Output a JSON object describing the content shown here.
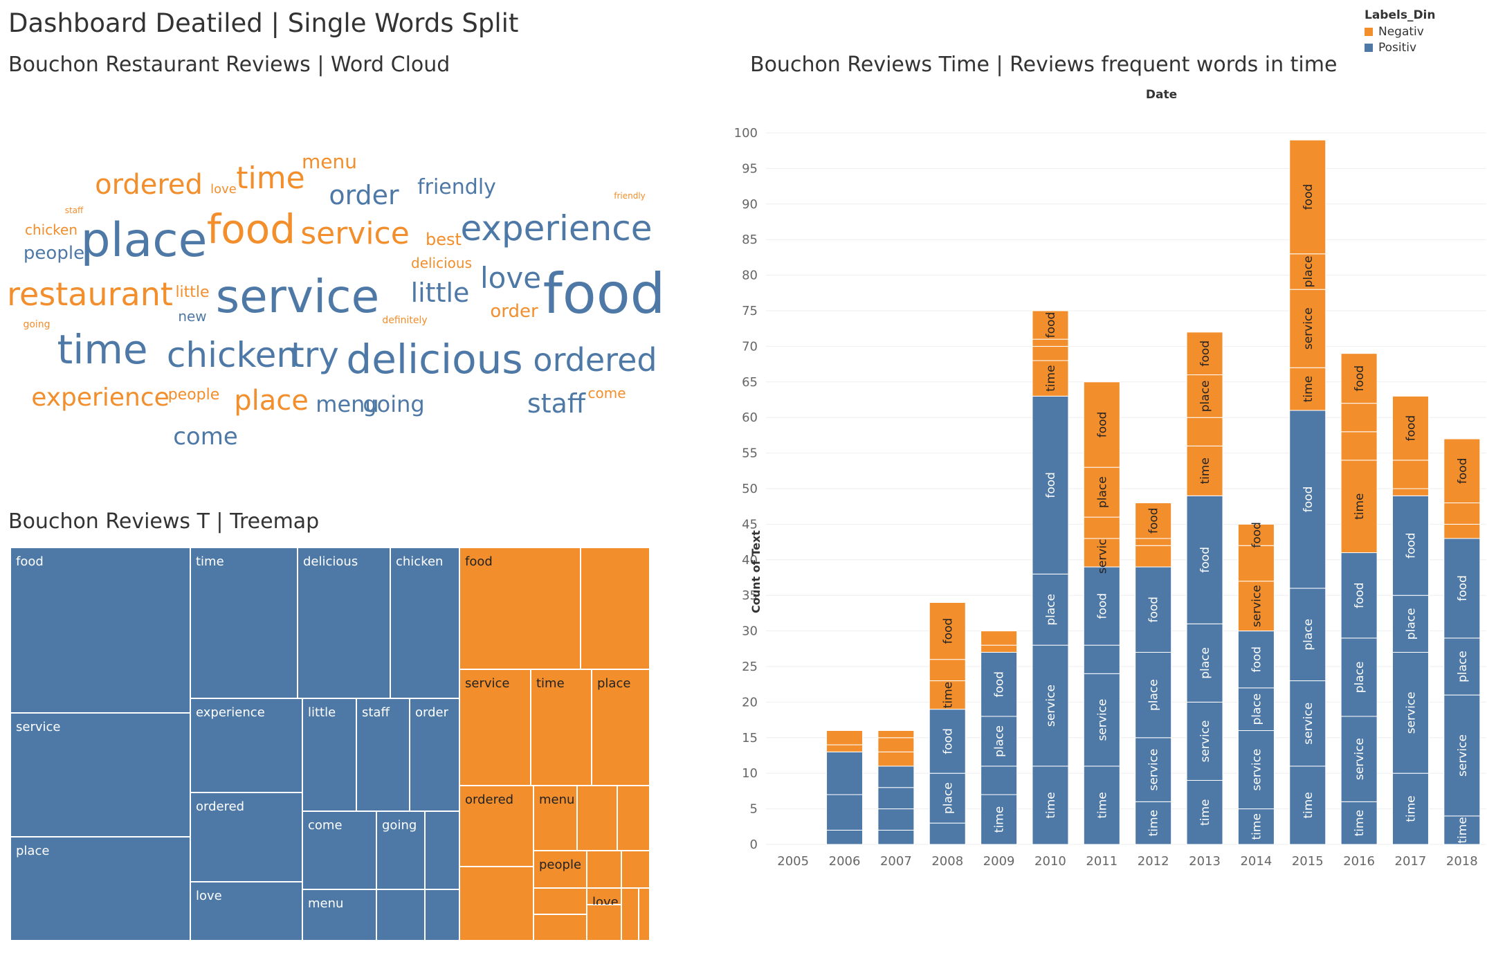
{
  "dashboard_title": "Dashboard Deatiled | Single Words Split",
  "wordcloud_title": "Bouchon Restaurant Reviews | Word Cloud",
  "treemap_title": "Bouchon Reviews T | Treemap",
  "barchart_title": "Bouchon Reviews Time |  Reviews frequent words in time",
  "colors": {
    "negativ": "#f28e2b",
    "positiv": "#4e79a7"
  },
  "legend": {
    "title": "Labels_Din",
    "items": [
      {
        "label": "Negativ",
        "color": "#f28e2b"
      },
      {
        "label": "Positiv",
        "color": "#4e79a7"
      }
    ]
  },
  "wordcloud_words": [
    {
      "text": "menu",
      "c": "negativ"
    },
    {
      "text": "ordered",
      "c": "negativ"
    },
    {
      "text": "love",
      "c": "negativ"
    },
    {
      "text": "time",
      "c": "negativ"
    },
    {
      "text": "order",
      "c": "positiv"
    },
    {
      "text": "friendly",
      "c": "positiv"
    },
    {
      "text": "friendly",
      "c": "negativ"
    },
    {
      "text": "staff",
      "c": "negativ"
    },
    {
      "text": "chicken",
      "c": "negativ"
    },
    {
      "text": "people",
      "c": "positiv"
    },
    {
      "text": "place",
      "c": "positiv"
    },
    {
      "text": "food",
      "c": "negativ"
    },
    {
      "text": "service",
      "c": "negativ"
    },
    {
      "text": "best",
      "c": "negativ"
    },
    {
      "text": "experience",
      "c": "positiv"
    },
    {
      "text": "delicious",
      "c": "negativ"
    },
    {
      "text": "restaurant",
      "c": "negativ"
    },
    {
      "text": "little",
      "c": "negativ"
    },
    {
      "text": "service",
      "c": "positiv"
    },
    {
      "text": "little",
      "c": "positiv"
    },
    {
      "text": "love",
      "c": "positiv"
    },
    {
      "text": "food",
      "c": "positiv"
    },
    {
      "text": "new",
      "c": "positiv"
    },
    {
      "text": "order",
      "c": "negativ"
    },
    {
      "text": "going",
      "c": "negativ"
    },
    {
      "text": "definitely",
      "c": "negativ"
    },
    {
      "text": "time",
      "c": "positiv"
    },
    {
      "text": "chicken",
      "c": "positiv"
    },
    {
      "text": "try",
      "c": "positiv"
    },
    {
      "text": "delicious",
      "c": "positiv"
    },
    {
      "text": "ordered",
      "c": "positiv"
    },
    {
      "text": "experience",
      "c": "negativ"
    },
    {
      "text": "people",
      "c": "negativ"
    },
    {
      "text": "place",
      "c": "negativ"
    },
    {
      "text": "menu",
      "c": "positiv"
    },
    {
      "text": "going",
      "c": "positiv"
    },
    {
      "text": "staff",
      "c": "positiv"
    },
    {
      "text": "come",
      "c": "negativ"
    },
    {
      "text": "come",
      "c": "positiv"
    }
  ],
  "treemap_cells": [
    {
      "label": "food",
      "c": "positiv"
    },
    {
      "label": "time",
      "c": "positiv"
    },
    {
      "label": "delicious",
      "c": "positiv"
    },
    {
      "label": "chicken",
      "c": "positiv"
    },
    {
      "label": "service",
      "c": "positiv"
    },
    {
      "label": "experience",
      "c": "positiv"
    },
    {
      "label": "little",
      "c": "positiv"
    },
    {
      "label": "staff",
      "c": "positiv"
    },
    {
      "label": "order",
      "c": "positiv"
    },
    {
      "label": "ordered",
      "c": "positiv"
    },
    {
      "label": "place",
      "c": "positiv"
    },
    {
      "label": "come",
      "c": "positiv"
    },
    {
      "label": "going",
      "c": "positiv"
    },
    {
      "label": "love",
      "c": "positiv"
    },
    {
      "label": "menu",
      "c": "positiv"
    },
    {
      "label": "",
      "c": "positiv"
    },
    {
      "label": "",
      "c": "positiv"
    },
    {
      "label": "",
      "c": "positiv"
    },
    {
      "label": "food",
      "c": "negativ"
    },
    {
      "label": "",
      "c": "negativ"
    },
    {
      "label": "service",
      "c": "negativ"
    },
    {
      "label": "time",
      "c": "negativ"
    },
    {
      "label": "place",
      "c": "negativ"
    },
    {
      "label": "ordered",
      "c": "negativ"
    },
    {
      "label": "menu",
      "c": "negativ"
    },
    {
      "label": "",
      "c": "negativ"
    },
    {
      "label": "",
      "c": "negativ"
    },
    {
      "label": "",
      "c": "negativ"
    },
    {
      "label": "people",
      "c": "negativ"
    },
    {
      "label": "",
      "c": "negativ"
    },
    {
      "label": "",
      "c": "negativ"
    },
    {
      "label": "",
      "c": "negativ"
    },
    {
      "label": "",
      "c": "negativ"
    },
    {
      "label": "love",
      "c": "negativ"
    },
    {
      "label": "",
      "c": "negativ"
    },
    {
      "label": "",
      "c": "negativ"
    },
    {
      "label": "",
      "c": "negativ"
    }
  ],
  "chart_data": {
    "type": "bar",
    "stacked": true,
    "title": "Bouchon Reviews Time |  Reviews frequent words in time",
    "xlabel": "Date",
    "ylabel": "Count of Text",
    "ylim": [
      0,
      100
    ],
    "yticks": [
      0,
      5,
      10,
      15,
      20,
      25,
      30,
      35,
      40,
      45,
      50,
      55,
      60,
      65,
      70,
      75,
      80,
      85,
      90,
      95,
      100
    ],
    "categories": [
      "2005",
      "2006",
      "2007",
      "2008",
      "2009",
      "2010",
      "2011",
      "2012",
      "2013",
      "2014",
      "2015",
      "2016",
      "2017",
      "2018"
    ],
    "series": [
      {
        "name": "Positiv",
        "values": [
          0,
          13,
          11,
          19,
          27,
          63,
          39,
          39,
          49,
          30,
          61,
          41,
          49,
          43
        ]
      },
      {
        "name": "Negativ",
        "values": [
          0,
          3,
          5,
          15,
          3,
          12,
          26,
          9,
          23,
          15,
          38,
          28,
          14,
          14
        ]
      }
    ],
    "segments": [
      {
        "year": "2005",
        "positiv": [],
        "negativ": []
      },
      {
        "year": "2006",
        "positiv": [
          {
            "w": "",
            "v": 2
          },
          {
            "w": "",
            "v": 5
          },
          {
            "w": "",
            "v": 6
          }
        ],
        "negativ": [
          {
            "w": "",
            "v": 1
          },
          {
            "w": "",
            "v": 2
          }
        ]
      },
      {
        "year": "2007",
        "positiv": [
          {
            "w": "",
            "v": 2
          },
          {
            "w": "",
            "v": 3
          },
          {
            "w": "",
            "v": 3
          },
          {
            "w": "",
            "v": 3
          }
        ],
        "negativ": [
          {
            "w": "",
            "v": 2
          },
          {
            "w": "",
            "v": 2
          },
          {
            "w": "",
            "v": 1
          }
        ]
      },
      {
        "year": "2008",
        "positiv": [
          {
            "w": "",
            "v": 3
          },
          {
            "w": "place",
            "v": 7
          },
          {
            "w": "food",
            "v": 9
          }
        ],
        "negativ": [
          {
            "w": "time",
            "v": 4
          },
          {
            "w": "",
            "v": 3
          },
          {
            "w": "food",
            "v": 8
          }
        ]
      },
      {
        "year": "2009",
        "positiv": [
          {
            "w": "time",
            "v": 7
          },
          {
            "w": "",
            "v": 4
          },
          {
            "w": "place",
            "v": 7
          },
          {
            "w": "food",
            "v": 9
          }
        ],
        "negativ": [
          {
            "w": "",
            "v": 1
          },
          {
            "w": "",
            "v": 2
          }
        ]
      },
      {
        "year": "2010",
        "positiv": [
          {
            "w": "time",
            "v": 11
          },
          {
            "w": "service",
            "v": 17
          },
          {
            "w": "place",
            "v": 10
          },
          {
            "w": "food",
            "v": 25
          }
        ],
        "negativ": [
          {
            "w": "time",
            "v": 5
          },
          {
            "w": "",
            "v": 2
          },
          {
            "w": "",
            "v": 1
          },
          {
            "w": "food",
            "v": 4
          }
        ]
      },
      {
        "year": "2011",
        "positiv": [
          {
            "w": "time",
            "v": 11
          },
          {
            "w": "service",
            "v": 13
          },
          {
            "w": "",
            "v": 4
          },
          {
            "w": "food",
            "v": 11
          }
        ],
        "negativ": [
          {
            "w": "service",
            "v": 4
          },
          {
            "w": "",
            "v": 3
          },
          {
            "w": "place",
            "v": 7
          },
          {
            "w": "food",
            "v": 12
          }
        ]
      },
      {
        "year": "2012",
        "positiv": [
          {
            "w": "time",
            "v": 6
          },
          {
            "w": "service",
            "v": 9
          },
          {
            "w": "place",
            "v": 12
          },
          {
            "w": "food",
            "v": 12
          }
        ],
        "negativ": [
          {
            "w": "",
            "v": 3
          },
          {
            "w": "",
            "v": 1
          },
          {
            "w": "food",
            "v": 5
          }
        ]
      },
      {
        "year": "2013",
        "positiv": [
          {
            "w": "time",
            "v": 9
          },
          {
            "w": "service",
            "v": 11
          },
          {
            "w": "place",
            "v": 11
          },
          {
            "w": "food",
            "v": 18
          }
        ],
        "negativ": [
          {
            "w": "time",
            "v": 7
          },
          {
            "w": "",
            "v": 4
          },
          {
            "w": "place",
            "v": 6
          },
          {
            "w": "food",
            "v": 6
          }
        ]
      },
      {
        "year": "2014",
        "positiv": [
          {
            "w": "time",
            "v": 5
          },
          {
            "w": "service",
            "v": 11
          },
          {
            "w": "place",
            "v": 6
          },
          {
            "w": "food",
            "v": 8
          }
        ],
        "negativ": [
          {
            "w": "service",
            "v": 7
          },
          {
            "w": "",
            "v": 5
          },
          {
            "w": "food",
            "v": 3
          }
        ]
      },
      {
        "year": "2015",
        "positiv": [
          {
            "w": "time",
            "v": 11
          },
          {
            "w": "service",
            "v": 12
          },
          {
            "w": "place",
            "v": 13
          },
          {
            "w": "food",
            "v": 25
          }
        ],
        "negativ": [
          {
            "w": "time",
            "v": 6
          },
          {
            "w": "service",
            "v": 11
          },
          {
            "w": "place",
            "v": 5
          },
          {
            "w": "food",
            "v": 16
          }
        ]
      },
      {
        "year": "2016",
        "positiv": [
          {
            "w": "time",
            "v": 6
          },
          {
            "w": "service",
            "v": 12
          },
          {
            "w": "place",
            "v": 11
          },
          {
            "w": "food",
            "v": 12
          }
        ],
        "negativ": [
          {
            "w": "time",
            "v": 13
          },
          {
            "w": "",
            "v": 4
          },
          {
            "w": "",
            "v": 4
          },
          {
            "w": "food",
            "v": 7
          }
        ]
      },
      {
        "year": "2017",
        "positiv": [
          {
            "w": "time",
            "v": 10
          },
          {
            "w": "service",
            "v": 17
          },
          {
            "w": "place",
            "v": 8
          },
          {
            "w": "food",
            "v": 14
          }
        ],
        "negativ": [
          {
            "w": "",
            "v": 1
          },
          {
            "w": "",
            "v": 4
          },
          {
            "w": "food",
            "v": 9
          }
        ]
      },
      {
        "year": "2018",
        "positiv": [
          {
            "w": "time",
            "v": 4
          },
          {
            "w": "service",
            "v": 17
          },
          {
            "w": "place",
            "v": 8
          },
          {
            "w": "food",
            "v": 14
          }
        ],
        "negativ": [
          {
            "w": "",
            "v": 2
          },
          {
            "w": "",
            "v": 3
          },
          {
            "w": "food",
            "v": 9
          }
        ]
      }
    ]
  }
}
